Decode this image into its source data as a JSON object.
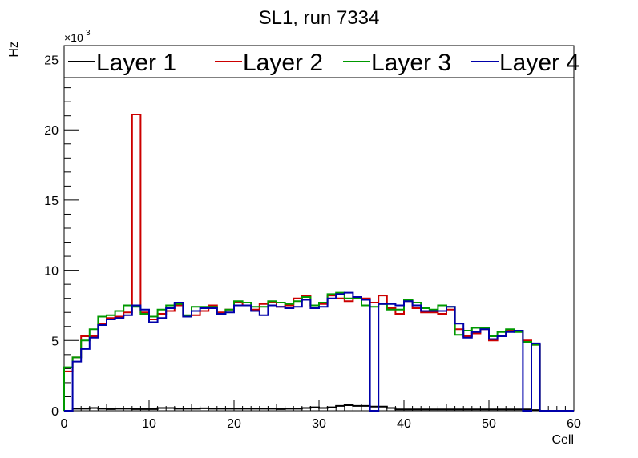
{
  "chart_data": {
    "type": "line",
    "title": "SL1, run 7334",
    "xlabel": "Cell",
    "ylabel": "Hz",
    "y_multiplier": "×10",
    "y_multiplier_exp": "3",
    "xlim": [
      0,
      60
    ],
    "ylim": [
      0,
      26000
    ],
    "x_ticks": [
      0,
      10,
      20,
      30,
      40,
      50,
      60
    ],
    "y_ticks": [
      0,
      5,
      10,
      15,
      20,
      25
    ],
    "grid": false,
    "legend_position": "top",
    "bin_edges_start": 0,
    "bin_width": 1,
    "series": [
      {
        "name": "Layer 1",
        "color": "#000000",
        "values": [
          0,
          150,
          150,
          200,
          150,
          120,
          150,
          150,
          120,
          120,
          120,
          200,
          200,
          150,
          150,
          150,
          180,
          150,
          150,
          150,
          150,
          150,
          150,
          150,
          150,
          120,
          150,
          150,
          200,
          250,
          200,
          250,
          350,
          400,
          350,
          350,
          300,
          300,
          200,
          100,
          100,
          100,
          100,
          100,
          100,
          100,
          100,
          100,
          100,
          100,
          100,
          100,
          100,
          100,
          100,
          50,
          0,
          0,
          0,
          0
        ]
      },
      {
        "name": "Layer 2",
        "color": "#cc0000",
        "values": [
          2800,
          3800,
          5300,
          5300,
          6200,
          6600,
          6700,
          7000,
          21100,
          7000,
          6500,
          6900,
          7100,
          7500,
          6700,
          6800,
          7100,
          7500,
          7000,
          7200,
          7700,
          7500,
          7200,
          7600,
          7700,
          7400,
          7500,
          8000,
          8200,
          7500,
          7600,
          8200,
          8000,
          7800,
          8100,
          8000,
          7700,
          8200,
          7300,
          6900,
          7800,
          7300,
          7000,
          7000,
          6900,
          7200,
          5800,
          5300,
          5500,
          5800,
          5000,
          5300,
          5700,
          5700,
          5000,
          4700,
          0,
          0,
          0,
          0
        ]
      },
      {
        "name": "Layer 3",
        "color": "#009900",
        "values": [
          3100,
          3800,
          5000,
          5800,
          6700,
          6800,
          7100,
          7500,
          7400,
          6900,
          6700,
          7200,
          7500,
          7600,
          6800,
          7400,
          7400,
          7400,
          6900,
          7200,
          7800,
          7700,
          7400,
          7400,
          7800,
          7700,
          7600,
          7800,
          8100,
          7500,
          7700,
          8300,
          8400,
          8000,
          8000,
          7500,
          7400,
          7600,
          7200,
          7200,
          7900,
          7700,
          7300,
          7200,
          7500,
          7400,
          5400,
          5700,
          5900,
          5900,
          5300,
          5600,
          5800,
          5600,
          4900,
          4700,
          0,
          0,
          0,
          0
        ]
      },
      {
        "name": "Layer 4",
        "color": "#0000aa",
        "values": [
          0,
          3500,
          4400,
          5200,
          6100,
          6500,
          6600,
          6800,
          7500,
          7200,
          6300,
          6600,
          7300,
          7700,
          6700,
          7100,
          7300,
          7300,
          6900,
          7000,
          7500,
          7500,
          7100,
          6800,
          7500,
          7400,
          7300,
          7400,
          7900,
          7300,
          7400,
          8000,
          8300,
          8400,
          8100,
          7900,
          0,
          7600,
          7600,
          7500,
          7800,
          7500,
          7100,
          7100,
          7100,
          7400,
          6200,
          5200,
          5600,
          5800,
          5100,
          5300,
          5600,
          5700,
          0,
          4800,
          0,
          0,
          0,
          0
        ]
      }
    ]
  }
}
